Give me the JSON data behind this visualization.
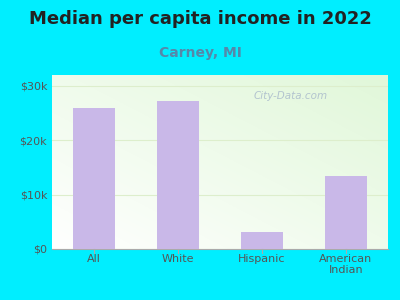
{
  "title": "Median per capita income in 2022",
  "subtitle": "Carney, MI",
  "categories": [
    "All",
    "White",
    "Hispanic",
    "American\nIndian"
  ],
  "values": [
    26000,
    27200,
    3200,
    13500
  ],
  "bar_color": "#c9b8e8",
  "background_outer": "#00eeff",
  "title_fontsize": 13,
  "subtitle_fontsize": 10,
  "subtitle_color": "#5588aa",
  "tick_color": "#555555",
  "ylim": [
    0,
    32000
  ],
  "yticks": [
    0,
    10000,
    20000,
    30000
  ],
  "ytick_labels": [
    "$0",
    "$10k",
    "$20k",
    "$30k"
  ],
  "grid_color": "#ddeecc",
  "watermark": "City-Data.com",
  "watermark_color": "#aabbcc"
}
